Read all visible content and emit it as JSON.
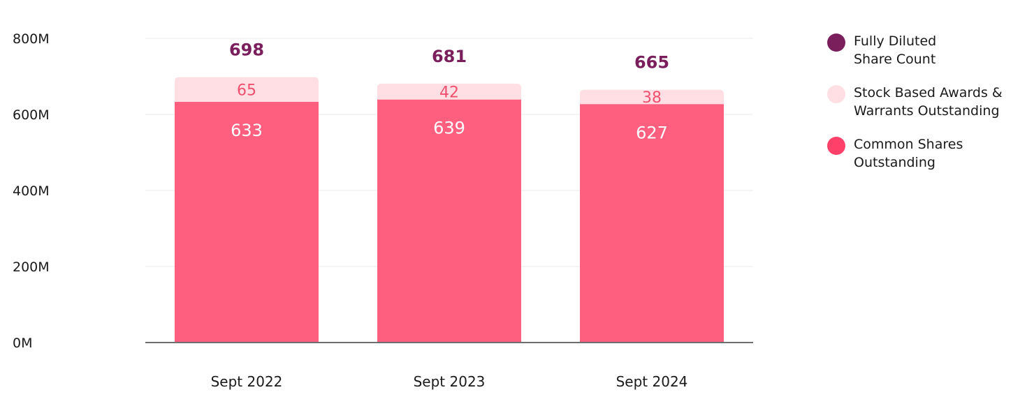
{
  "colors": {
    "total": "#7a1f5c",
    "awards": "#ffdfe4",
    "awards_text": "#f0506e",
    "common": "#ff5f7e",
    "common_text": "#ffffff",
    "grid": "#e8e8e8",
    "axis": "#6e6e6e"
  },
  "chart_data": {
    "type": "bar",
    "stacked": true,
    "categories": [
      "Sept 2022",
      "Sept 2023",
      "Sept 2024"
    ],
    "series": [
      {
        "name": "Common Shares Outstanding",
        "values": [
          633,
          639,
          627
        ]
      },
      {
        "name": "Stock Based Awards & Warrants Outstanding",
        "values": [
          65,
          42,
          38
        ]
      }
    ],
    "totals": {
      "name": "Fully Diluted Share Count",
      "values": [
        698,
        681,
        665
      ]
    },
    "yticks": [
      "0M",
      "200M",
      "400M",
      "600M",
      "800M"
    ],
    "ylim": [
      0,
      800
    ],
    "grid": true,
    "legend_position": "right"
  },
  "legend": [
    {
      "lines": [
        "Fully Diluted",
        "Share Count"
      ],
      "color": "#7a1f5c"
    },
    {
      "lines": [
        "Stock Based Awards &",
        "Warrants Outstanding"
      ],
      "color": "#ffdfe4"
    },
    {
      "lines": [
        "Common Shares",
        "Outstanding"
      ],
      "color": "#ff4068"
    }
  ]
}
